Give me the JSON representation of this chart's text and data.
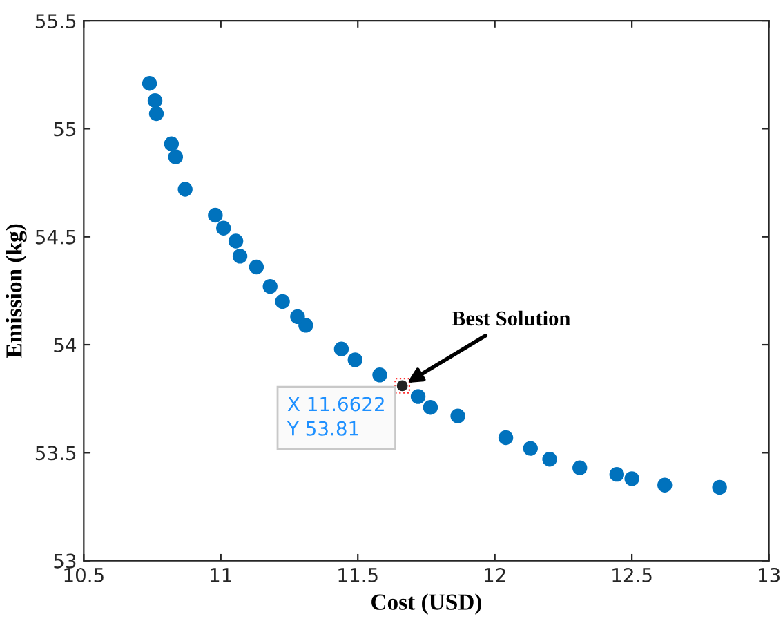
{
  "chart_data": {
    "type": "scatter",
    "xlabel": "Cost (USD)",
    "ylabel": "Emission (kg)",
    "xlim": [
      10.5,
      13
    ],
    "xticks": [
      10.5,
      11,
      11.5,
      12,
      12.5,
      13
    ],
    "ylim": [
      53,
      55.5
    ],
    "yticks": [
      53,
      53.5,
      54,
      54.5,
      55,
      55.5
    ],
    "grid": false,
    "legend": false,
    "marker": "circle",
    "series": [
      {
        "color": "#0072bd",
        "x": [
          10.74,
          10.76,
          10.765,
          10.82,
          10.835,
          10.87,
          10.98,
          11.01,
          11.055,
          11.07,
          11.13,
          11.18,
          11.225,
          11.28,
          11.31,
          11.44,
          11.49,
          11.58,
          11.72,
          11.765,
          11.865,
          12.04,
          12.13,
          12.2,
          12.31,
          12.445,
          12.5,
          12.62,
          12.82
        ],
        "values": [
          55.21,
          55.13,
          55.07,
          54.93,
          54.87,
          54.72,
          54.6,
          54.54,
          54.48,
          54.41,
          54.36,
          54.27,
          54.2,
          54.13,
          54.09,
          53.98,
          53.93,
          53.86,
          53.76,
          53.71,
          53.67,
          53.57,
          53.52,
          53.47,
          53.43,
          53.4,
          53.38,
          53.35,
          53.34
        ]
      },
      {
        "color": "#222222",
        "x": [
          11.6622
        ],
        "values": [
          53.81
        ]
      }
    ],
    "annotations": [
      {
        "text": "Best Solution",
        "x": 11.6622,
        "y": 53.81
      },
      {
        "text": "X 11.6622\nY 53.81",
        "x": 11.6622,
        "y": 53.81
      }
    ]
  }
}
